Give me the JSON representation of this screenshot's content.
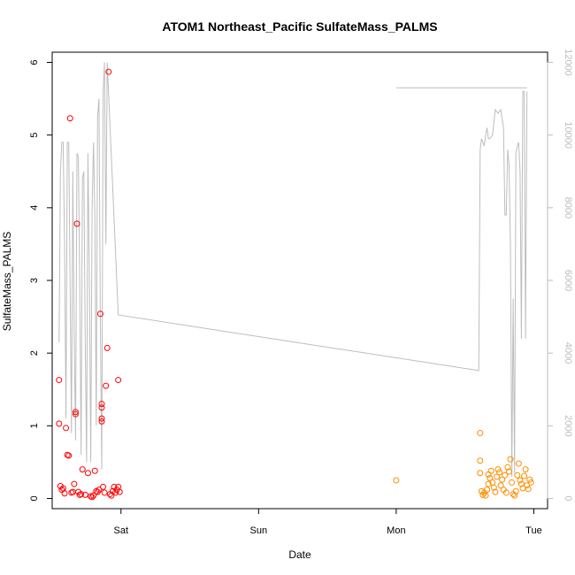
{
  "chart_data": {
    "type": "scatter",
    "title": "ATOM1 Northeast_Pacific SulfateMass_PALMS",
    "xlabel": "Date",
    "ylabel": "SulfateMass_PALMS",
    "x_ticks": [
      "Sat",
      "Sun",
      "Mon",
      "Tue"
    ],
    "y_left": {
      "range": [
        0,
        6
      ],
      "ticks": [
        "0",
        "1",
        "2",
        "3",
        "4",
        "5",
        "6"
      ]
    },
    "y_right": {
      "range": [
        0,
        12000
      ],
      "ticks": [
        "0",
        "2000",
        "4000",
        "6000",
        "8000",
        "10000",
        "12000"
      ]
    },
    "grid": false,
    "legend": "none",
    "colors": {
      "cluster_a": "#ff0000",
      "cluster_b": "#ff8c00",
      "altitude_line": "#bdbdbd",
      "axis": "#000000",
      "right_axis": "#bdbdbd"
    },
    "series": [
      {
        "values": [
          [
            -0.45,
            1.63
          ],
          [
            -0.45,
            1.03
          ],
          [
            -0.44,
            0.17
          ],
          [
            -0.43,
            0.12
          ],
          [
            -0.42,
            0.14
          ],
          [
            -0.41,
            0.07
          ],
          [
            -0.4,
            0.97
          ],
          [
            -0.39,
            0.6
          ],
          [
            -0.38,
            0.59
          ],
          [
            -0.37,
            5.23
          ],
          [
            -0.36,
            0.08
          ],
          [
            -0.35,
            0.09
          ],
          [
            -0.34,
            0.2
          ],
          [
            -0.33,
            1.16
          ],
          [
            -0.33,
            1.19
          ],
          [
            -0.32,
            3.78
          ],
          [
            -0.31,
            0.09
          ],
          [
            -0.3,
            0.05
          ],
          [
            -0.29,
            0.06
          ],
          [
            -0.28,
            0.4
          ],
          [
            -0.26,
            0.05
          ],
          [
            -0.24,
            0.35
          ],
          [
            -0.22,
            0.03
          ],
          [
            -0.21,
            0.02
          ],
          [
            -0.2,
            0.04
          ],
          [
            -0.19,
            0.38
          ],
          [
            -0.18,
            0.1
          ],
          [
            -0.17,
            0.09
          ],
          [
            -0.16,
            0.12
          ],
          [
            -0.15,
            2.54
          ],
          [
            -0.14,
            1.3
          ],
          [
            -0.14,
            1.25
          ],
          [
            -0.14,
            1.1
          ],
          [
            -0.14,
            1.06
          ],
          [
            -0.13,
            0.16
          ],
          [
            -0.12,
            0.08
          ],
          [
            -0.11,
            1.55
          ],
          [
            -0.1,
            2.07
          ],
          [
            -0.09,
            5.87
          ],
          [
            -0.08,
            0.06
          ],
          [
            -0.07,
            0.04
          ],
          [
            -0.06,
            0.1
          ],
          [
            -0.05,
            0.16
          ],
          [
            -0.04,
            0.08
          ],
          [
            -0.03,
            0.12
          ],
          [
            -0.02,
            1.63
          ],
          [
            -0.02,
            0.16
          ],
          [
            -0.01,
            0.09
          ]
        ]
      },
      {
        "values": [
          [
            2.0,
            0.25
          ],
          [
            2.61,
            0.9
          ],
          [
            2.61,
            0.52
          ],
          [
            2.61,
            0.35
          ],
          [
            2.62,
            0.1
          ],
          [
            2.63,
            0.05
          ],
          [
            2.64,
            0.08
          ],
          [
            2.65,
            0.04
          ],
          [
            2.66,
            0.12
          ],
          [
            2.67,
            0.2
          ],
          [
            2.67,
            0.33
          ],
          [
            2.68,
            0.28
          ],
          [
            2.69,
            0.38
          ],
          [
            2.7,
            0.22
          ],
          [
            2.71,
            0.15
          ],
          [
            2.72,
            0.09
          ],
          [
            2.73,
            0.3
          ],
          [
            2.74,
            0.4
          ],
          [
            2.75,
            0.36
          ],
          [
            2.76,
            0.18
          ],
          [
            2.77,
            0.26
          ],
          [
            2.78,
            0.12
          ],
          [
            2.79,
            0.32
          ],
          [
            2.8,
            0.08
          ],
          [
            2.81,
            0.43
          ],
          [
            2.82,
            0.37
          ],
          [
            2.83,
            0.54
          ],
          [
            2.84,
            0.22
          ],
          [
            2.85,
            0.06
          ],
          [
            2.86,
            0.04
          ],
          [
            2.87,
            0.1
          ],
          [
            2.88,
            0.32
          ],
          [
            2.89,
            0.48
          ],
          [
            2.9,
            0.25
          ],
          [
            2.91,
            0.2
          ],
          [
            2.92,
            0.14
          ],
          [
            2.93,
            0.31
          ],
          [
            2.94,
            0.4
          ],
          [
            2.95,
            0.18
          ],
          [
            2.96,
            0.13
          ],
          [
            2.97,
            0.26
          ],
          [
            2.98,
            0.22
          ]
        ]
      },
      {
        "values": [
          [
            -0.45,
            4300
          ],
          [
            -0.44,
            9000
          ],
          [
            -0.43,
            9800
          ],
          [
            -0.42,
            9800
          ],
          [
            -0.41,
            7000
          ],
          [
            -0.4,
            2200
          ],
          [
            -0.39,
            9800
          ],
          [
            -0.38,
            9800
          ],
          [
            -0.37,
            6000
          ],
          [
            -0.36,
            1800
          ],
          [
            -0.35,
            9000
          ],
          [
            -0.34,
            4500
          ],
          [
            -0.33,
            1600
          ],
          [
            -0.32,
            9500
          ],
          [
            -0.31,
            9400
          ],
          [
            -0.3,
            6000
          ],
          [
            -0.29,
            1200
          ],
          [
            -0.28,
            8800
          ],
          [
            -0.27,
            9000
          ],
          [
            -0.26,
            4400
          ],
          [
            -0.25,
            1000
          ],
          [
            -0.24,
            9500
          ],
          [
            -0.23,
            6200
          ],
          [
            -0.22,
            1000
          ],
          [
            -0.21,
            8000
          ],
          [
            -0.2,
            9800
          ],
          [
            -0.19,
            7800
          ],
          [
            -0.18,
            2000
          ],
          [
            -0.17,
            10500
          ],
          [
            -0.16,
            11000
          ],
          [
            -0.15,
            5000
          ],
          [
            -0.14,
            800
          ],
          [
            -0.13,
            11200
          ],
          [
            -0.12,
            12000
          ],
          [
            -0.11,
            7000
          ],
          [
            -0.1,
            12000
          ],
          [
            -0.02,
            5050
          ],
          [
            2.6,
            3520
          ],
          [
            2.61,
            9600
          ],
          [
            2.62,
            9900
          ],
          [
            2.63,
            9800
          ],
          [
            2.64,
            9700
          ],
          [
            2.65,
            10000
          ],
          [
            2.66,
            10200
          ],
          [
            2.67,
            9900
          ],
          [
            2.68,
            9900
          ],
          [
            2.7,
            10000
          ],
          [
            2.72,
            10700
          ],
          [
            2.74,
            10600
          ],
          [
            2.76,
            10700
          ],
          [
            2.78,
            10200
          ],
          [
            2.79,
            7800
          ],
          [
            2.8,
            7800
          ],
          [
            2.81,
            9600
          ],
          [
            2.82,
            9200
          ],
          [
            2.83,
            7000
          ],
          [
            2.84,
            600
          ],
          [
            2.85,
            5500
          ],
          [
            2.86,
            700
          ],
          [
            2.87,
            9500
          ],
          [
            2.88,
            9700
          ],
          [
            2.89,
            9800
          ],
          [
            2.9,
            9000
          ],
          [
            2.91,
            4400
          ],
          [
            2.92,
            11200
          ],
          [
            2.93,
            11200
          ],
          [
            2.94,
            4400
          ],
          [
            2.95,
            11200
          ]
        ]
      },
      {
        "values": [
          [
            2.0,
            11300
          ],
          [
            2.95,
            11300
          ]
        ]
      }
    ]
  }
}
